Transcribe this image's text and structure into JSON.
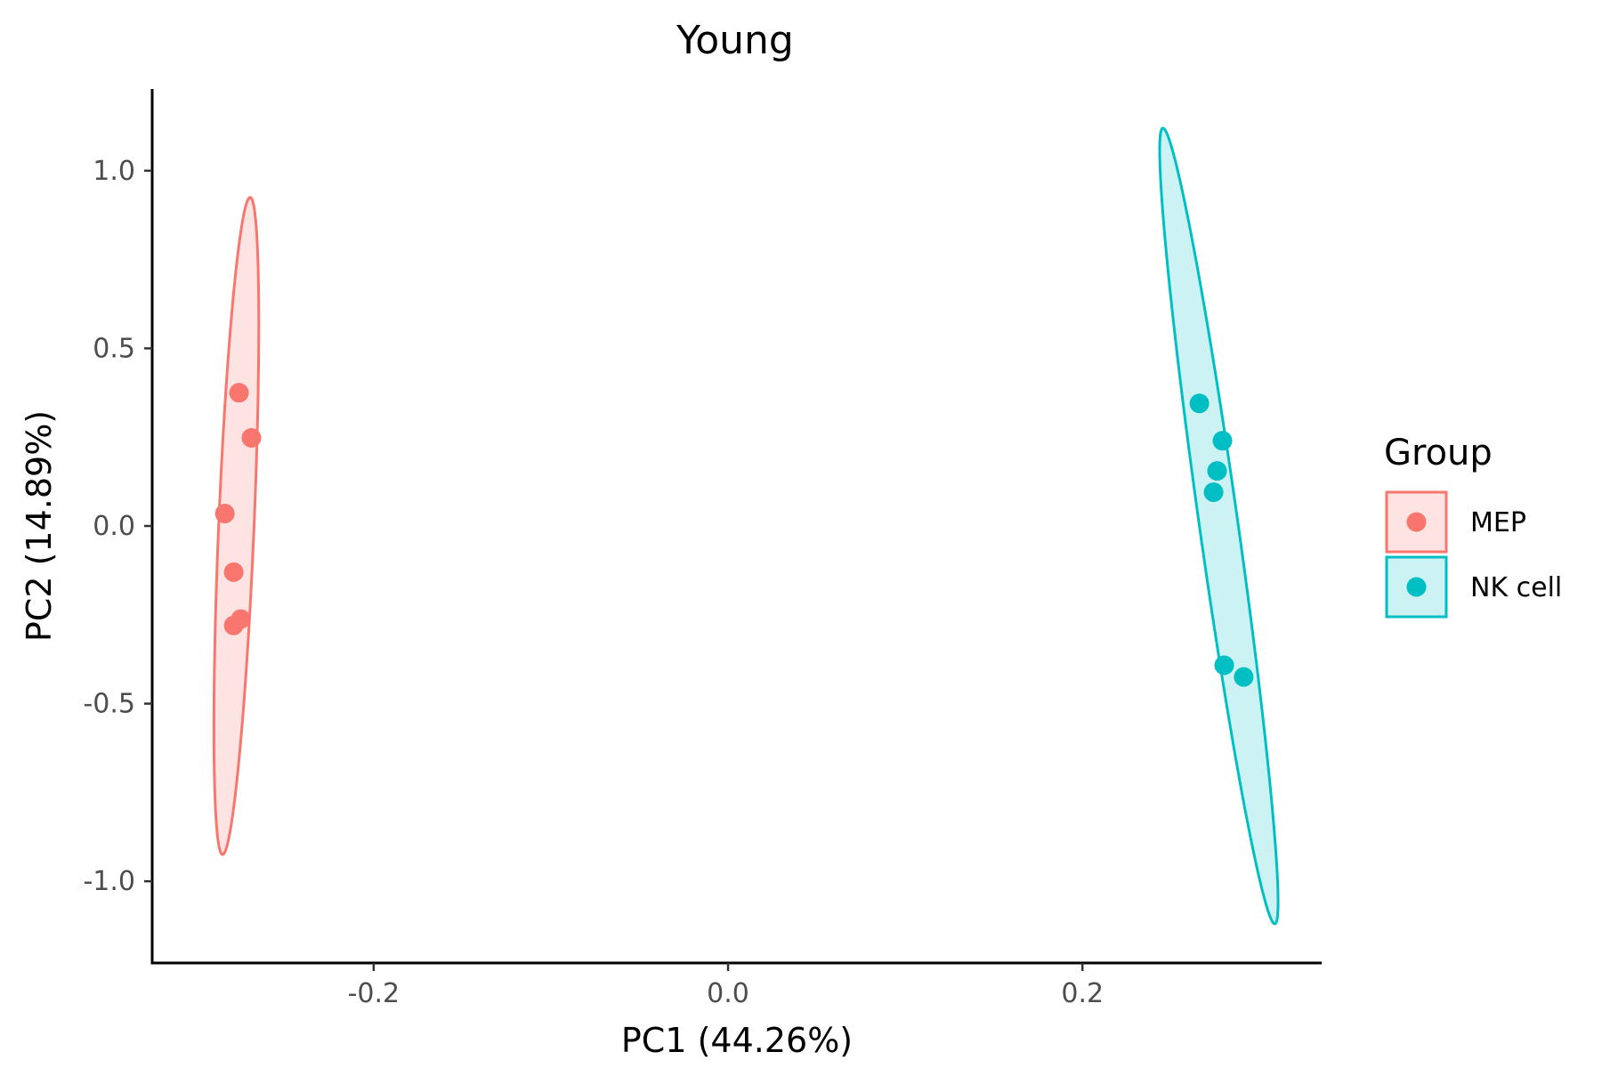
{
  "chart_data": {
    "type": "scatter",
    "title": "Young",
    "xlabel": "PC1 (44.26%)",
    "ylabel": "PC2 (14.89%)",
    "xlim": [
      -0.325,
      0.335
    ],
    "ylim": [
      -1.23,
      1.23
    ],
    "x_ticks": [
      -0.2,
      0.0,
      0.2
    ],
    "x_tick_labels": [
      "-0.2",
      "0.0",
      "0.2"
    ],
    "y_ticks": [
      -1.0,
      -0.5,
      0.0,
      0.5,
      1.0
    ],
    "y_tick_labels": [
      "-1.0",
      "-0.5",
      "0.0",
      "0.5",
      "1.0"
    ],
    "grid": false,
    "legend": {
      "title": "Group",
      "position": "right"
    },
    "series": [
      {
        "name": "MEP",
        "color": "#F8766D",
        "fill": "#FDE4E2",
        "points": [
          {
            "x": -0.276,
            "y": 0.375
          },
          {
            "x": -0.269,
            "y": 0.248
          },
          {
            "x": -0.284,
            "y": 0.035
          },
          {
            "x": -0.279,
            "y": -0.13
          },
          {
            "x": -0.275,
            "y": -0.262
          },
          {
            "x": -0.279,
            "y": -0.28
          }
        ],
        "ellipse": {
          "cx": -0.2775,
          "cy": 0.0,
          "rx": 0.01,
          "ry": 0.925,
          "angle_deg": -2.4
        }
      },
      {
        "name": "NK cell",
        "color": "#00BFC4",
        "fill": "#CCF2F3",
        "points": [
          {
            "x": 0.266,
            "y": 0.345
          },
          {
            "x": 0.279,
            "y": 0.24
          },
          {
            "x": 0.276,
            "y": 0.155
          },
          {
            "x": 0.274,
            "y": 0.095
          },
          {
            "x": 0.28,
            "y": -0.392
          },
          {
            "x": 0.291,
            "y": -0.425
          }
        ],
        "ellipse": {
          "cx": 0.277,
          "cy": 0.0,
          "rx": 0.011,
          "ry": 1.12,
          "angle_deg": 8.0
        }
      }
    ]
  }
}
